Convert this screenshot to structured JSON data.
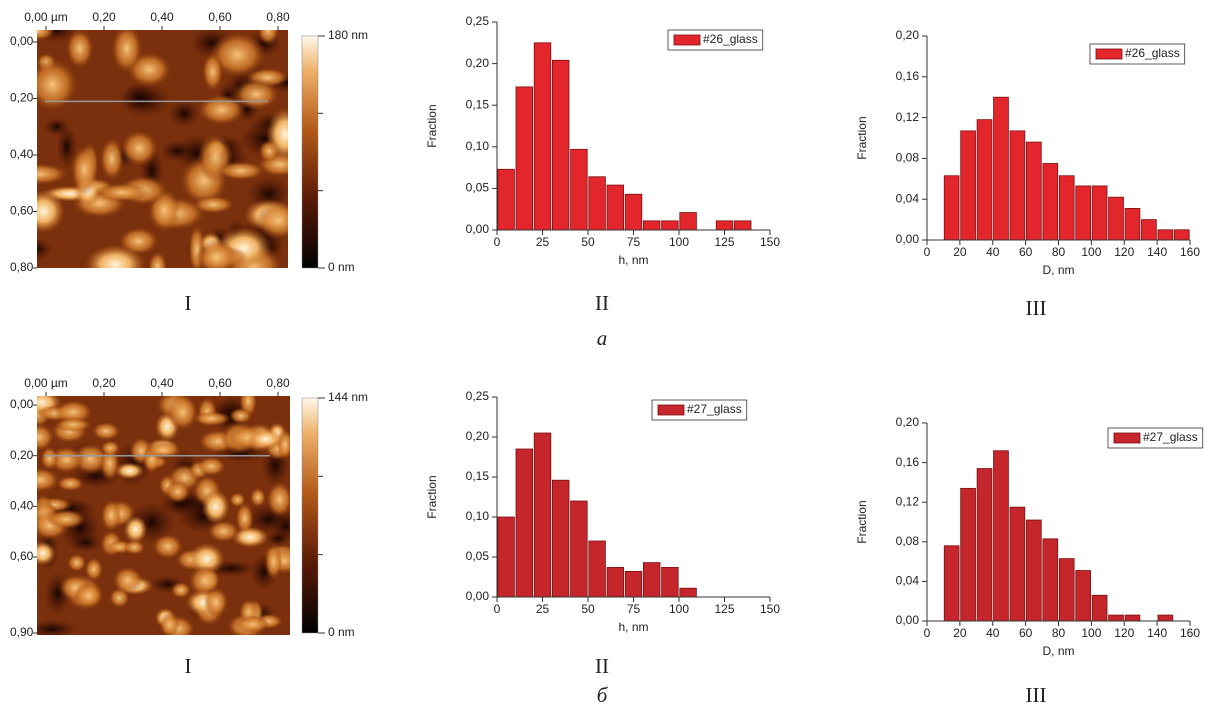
{
  "chart_data": [
    {
      "type": "afm-image",
      "xlim": [
        0,
        0.8
      ],
      "xticks": [
        {
          "value": 0,
          "label": "0,00 µm"
        },
        {
          "value": 0.2,
          "label": "0,20"
        },
        {
          "value": 0.4,
          "label": "0,40"
        },
        {
          "value": 0.6,
          "label": "0,60"
        },
        {
          "value": 0.8,
          "label": "0,80"
        }
      ],
      "ylim": [
        0,
        0.8
      ],
      "yticks": [
        {
          "value": 0,
          "label": "0,00"
        },
        {
          "value": 0.2,
          "label": "0,20"
        },
        {
          "value": 0.4,
          "label": "0,40"
        },
        {
          "value": 0.6,
          "label": "0,60"
        },
        {
          "value": 0.8,
          "label": "0,80"
        }
      ],
      "zlim": [
        0,
        180
      ],
      "zticks": [
        {
          "value": 180,
          "label": "180 nm"
        },
        {
          "value": 0,
          "label": "0 nm"
        }
      ]
    },
    {
      "type": "histogram",
      "xlabel": "h, nm",
      "ylabel": "Fraction",
      "bins": [
        0,
        10,
        20,
        30,
        40,
        50,
        60,
        70,
        80,
        90,
        100,
        110,
        120,
        130,
        140
      ],
      "series": [
        {
          "name": "#26_glass",
          "color": "#e3262b",
          "values": [
            0.073,
            0.172,
            0.225,
            0.204,
            0.097,
            0.064,
            0.054,
            0.043,
            0.011,
            0.011,
            0.021,
            0,
            0.011,
            0.011
          ]
        }
      ],
      "xlim": [
        0,
        150
      ],
      "xticks": [
        0,
        25,
        50,
        75,
        100,
        125,
        150
      ],
      "ylim": [
        0,
        0.25
      ],
      "yticks": [
        {
          "value": 0,
          "label": "0,00"
        },
        {
          "value": 0.05,
          "label": "0,05"
        },
        {
          "value": 0.1,
          "label": "0,10"
        },
        {
          "value": 0.15,
          "label": "0,15"
        },
        {
          "value": 0.2,
          "label": "0,20"
        },
        {
          "value": 0.25,
          "label": "0,25"
        }
      ]
    },
    {
      "type": "histogram",
      "xlabel": "D, nm",
      "ylabel": "Fraction",
      "bins": [
        10,
        20,
        30,
        40,
        50,
        60,
        70,
        80,
        90,
        100,
        110,
        120,
        130,
        140,
        150,
        160
      ],
      "series": [
        {
          "name": "#26_glass",
          "color": "#e3262b",
          "values": [
            0.063,
            0.107,
            0.118,
            0.14,
            0.107,
            0.096,
            0.075,
            0.063,
            0.053,
            0.053,
            0.042,
            0.031,
            0.02,
            0.01,
            0.01
          ]
        }
      ],
      "xlim": [
        0,
        160
      ],
      "xticks": [
        0,
        20,
        40,
        60,
        80,
        100,
        120,
        140,
        160
      ],
      "ylim": [
        0,
        0.2
      ],
      "yticks": [
        {
          "value": 0,
          "label": "0,00"
        },
        {
          "value": 0.04,
          "label": "0,04"
        },
        {
          "value": 0.08,
          "label": "0,08"
        },
        {
          "value": 0.12,
          "label": "0,12"
        },
        {
          "value": 0.16,
          "label": "0,16"
        },
        {
          "value": 0.2,
          "label": "0,20"
        }
      ]
    },
    {
      "type": "afm-image",
      "xlim": [
        0,
        0.8
      ],
      "xticks": [
        {
          "value": 0,
          "label": "0,00 µm"
        },
        {
          "value": 0.2,
          "label": "0,20"
        },
        {
          "value": 0.4,
          "label": "0,40"
        },
        {
          "value": 0.6,
          "label": "0,60"
        },
        {
          "value": 0.8,
          "label": "0,80"
        }
      ],
      "ylim": [
        0,
        0.9
      ],
      "yticks": [
        {
          "value": 0,
          "label": "0,00"
        },
        {
          "value": 0.2,
          "label": "0,20"
        },
        {
          "value": 0.4,
          "label": "0,40"
        },
        {
          "value": 0.6,
          "label": "0,60"
        },
        {
          "value": 0.9,
          "label": "0,90"
        }
      ],
      "zlim": [
        0,
        144
      ],
      "zticks": [
        {
          "value": 144,
          "label": "144 nm"
        },
        {
          "value": 0,
          "label": "0 nm"
        }
      ]
    },
    {
      "type": "histogram",
      "xlabel": "h, nm",
      "ylabel": "Fraction",
      "bins": [
        0,
        10,
        20,
        30,
        40,
        50,
        60,
        70,
        80,
        90,
        100,
        110
      ],
      "series": [
        {
          "name": "#27_glass",
          "color": "#c4262b",
          "values": [
            0.1,
            0.185,
            0.205,
            0.146,
            0.12,
            0.07,
            0.037,
            0.032,
            0.043,
            0.037,
            0.011
          ]
        }
      ],
      "xlim": [
        0,
        150
      ],
      "xticks": [
        0,
        25,
        50,
        75,
        100,
        125,
        150
      ],
      "ylim": [
        0,
        0.25
      ],
      "yticks": [
        {
          "value": 0,
          "label": "0,00"
        },
        {
          "value": 0.05,
          "label": "0,05"
        },
        {
          "value": 0.1,
          "label": "0,10"
        },
        {
          "value": 0.15,
          "label": "0,15"
        },
        {
          "value": 0.2,
          "label": "0,20"
        },
        {
          "value": 0.25,
          "label": "0,25"
        }
      ]
    },
    {
      "type": "histogram",
      "xlabel": "D, nm",
      "ylabel": "Fraction",
      "bins": [
        10,
        20,
        30,
        40,
        50,
        60,
        70,
        80,
        90,
        100,
        110,
        120,
        130,
        140,
        150
      ],
      "series": [
        {
          "name": "#27_glass",
          "color": "#c4262b",
          "values": [
            0.076,
            0.134,
            0.154,
            0.172,
            0.115,
            0.102,
            0.083,
            0.063,
            0.051,
            0.026,
            0.006,
            0.006,
            0,
            0.006
          ]
        }
      ],
      "xlim": [
        0,
        160
      ],
      "xticks": [
        0,
        20,
        40,
        60,
        80,
        100,
        120,
        140,
        160
      ],
      "ylim": [
        0,
        0.2
      ],
      "yticks": [
        {
          "value": 0,
          "label": "0,00"
        },
        {
          "value": 0.04,
          "label": "0,04"
        },
        {
          "value": 0.08,
          "label": "0,08"
        },
        {
          "value": 0.12,
          "label": "0,12"
        },
        {
          "value": 0.16,
          "label": "0,16"
        },
        {
          "value": 0.2,
          "label": "0,20"
        }
      ]
    }
  ],
  "panel_labels": [
    "I",
    "II",
    "III",
    "а",
    "I",
    "II",
    "б",
    "III"
  ]
}
